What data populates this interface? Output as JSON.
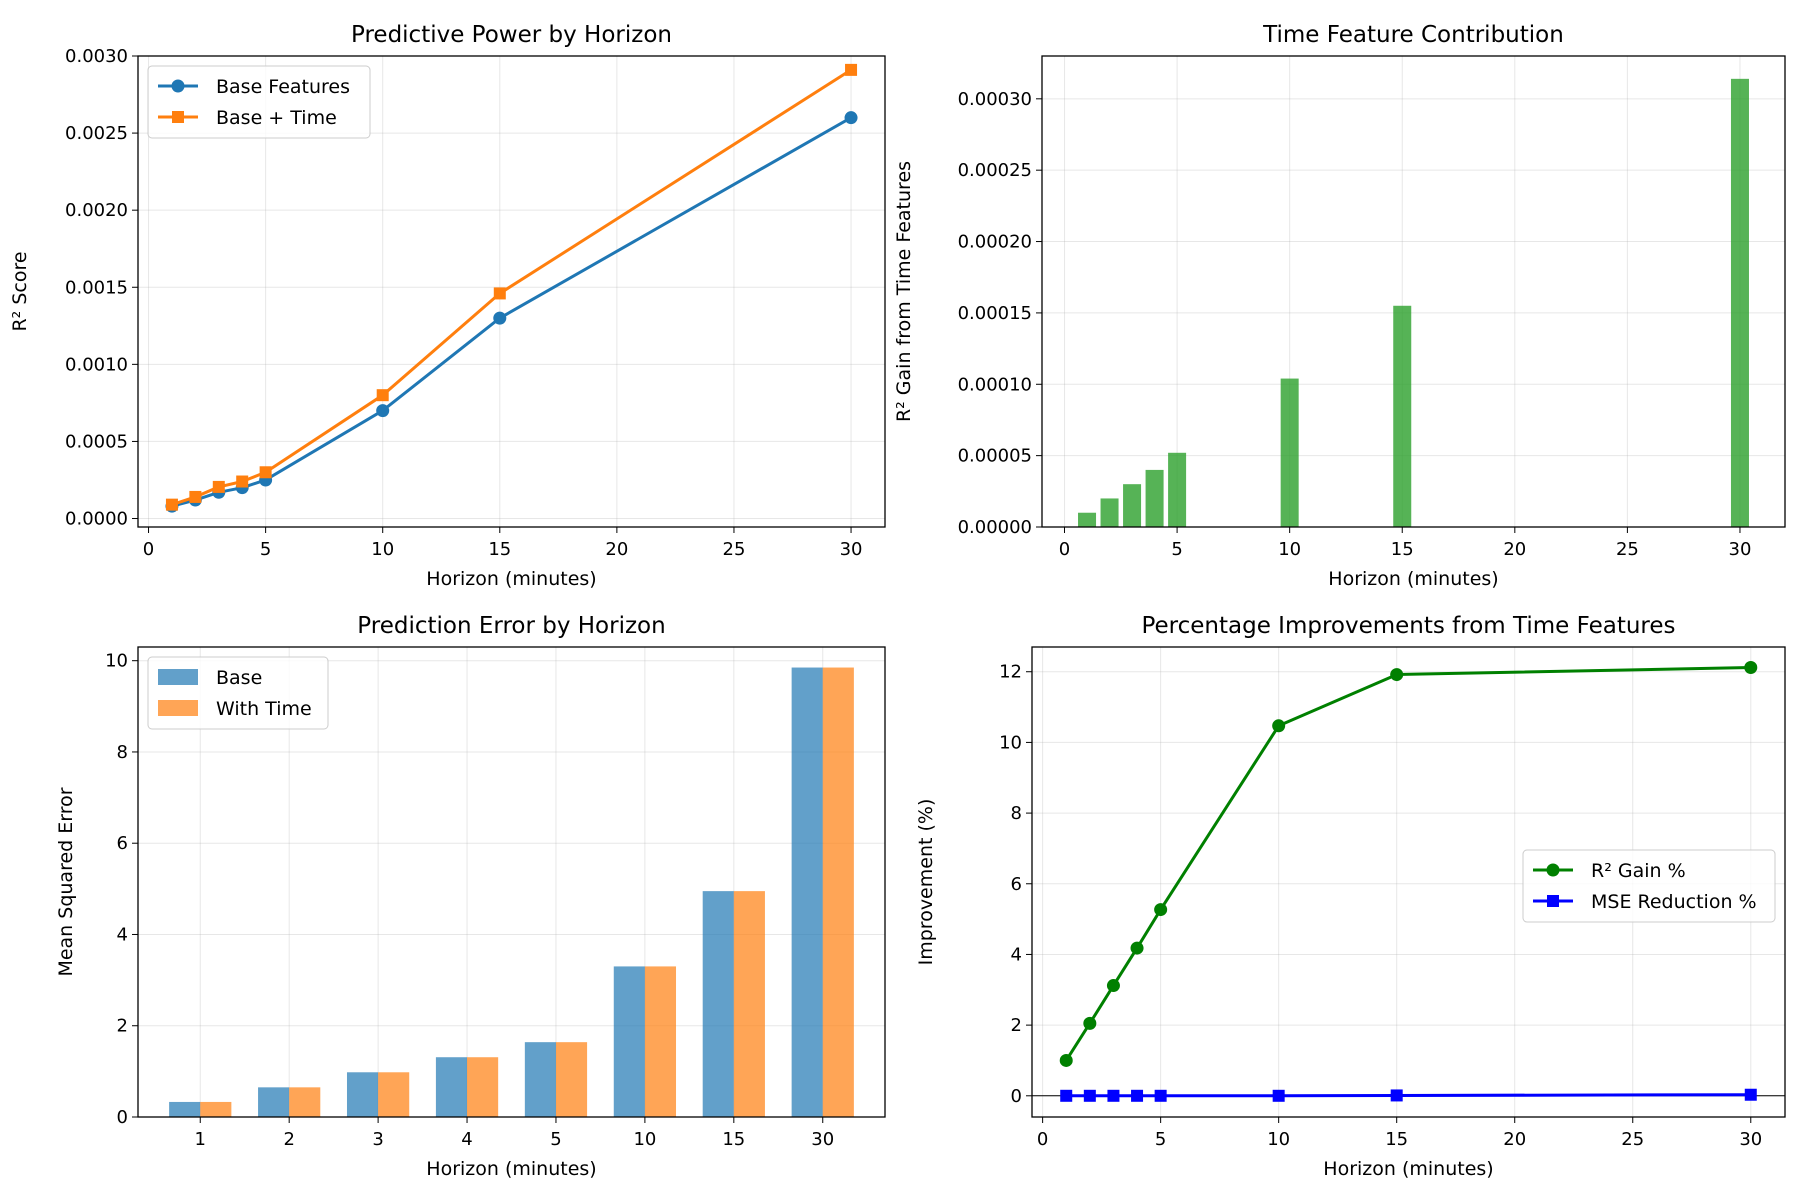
{
  "chart_data": [
    {
      "type": "line",
      "title": "Predictive Power by Horizon",
      "xlabel": "Horizon (minutes)",
      "ylabel": "R² Score",
      "xlim": [
        -0.45,
        31.45
      ],
      "ylim": [
        -5.5e-05,
        0.003
      ],
      "xticks": [
        0,
        5,
        10,
        15,
        20,
        25,
        30
      ],
      "yticks": [
        0.0,
        0.0005,
        0.001,
        0.0015,
        0.002,
        0.0025,
        0.003
      ],
      "ytick_labels": [
        "0.0000",
        "0.0005",
        "0.0010",
        "0.0015",
        "0.0020",
        "0.0025",
        "0.0030"
      ],
      "grid": true,
      "legend": "upper-left",
      "x": [
        1,
        2,
        3,
        4,
        5,
        10,
        15,
        30
      ],
      "series": [
        {
          "name": "Base Features",
          "color": "#1f77b4",
          "marker": "circle",
          "values": [
            8e-05,
            0.00012,
            0.00017,
            0.0002,
            0.00025,
            0.0007,
            0.0013,
            0.0026
          ]
        },
        {
          "name": "Base + Time",
          "color": "#ff7f0e",
          "marker": "square",
          "values": [
            9e-05,
            0.00014,
            0.000205,
            0.00024,
            0.0003,
            0.0008,
            0.00146,
            0.00291
          ]
        }
      ]
    },
    {
      "type": "bar",
      "title": "Time Feature Contribution",
      "xlabel": "Horizon (minutes)",
      "ylabel": "R² Gain from Time Features",
      "xlim": [
        -1.0,
        32.0
      ],
      "ylim": [
        0,
        0.00033
      ],
      "xticks": [
        0,
        5,
        10,
        15,
        20,
        25,
        30
      ],
      "yticks": [
        0.0,
        5e-05,
        0.0001,
        0.00015,
        0.0002,
        0.00025,
        0.0003
      ],
      "ytick_labels": [
        "0.00000",
        "0.00005",
        "0.00010",
        "0.00015",
        "0.00020",
        "0.00025",
        "0.00030"
      ],
      "grid": true,
      "x": [
        1,
        2,
        3,
        4,
        5,
        10,
        15,
        30
      ],
      "bar_color": "#2ca02c",
      "values": [
        1e-05,
        2e-05,
        3e-05,
        4e-05,
        5.2e-05,
        0.000104,
        0.000155,
        0.000314
      ]
    },
    {
      "type": "bar",
      "title": "Prediction Error by Horizon",
      "xlabel": "Horizon (minutes)",
      "ylabel": "Mean Squared Error",
      "categories": [
        "1",
        "2",
        "3",
        "4",
        "5",
        "10",
        "15",
        "30"
      ],
      "ylim": [
        0,
        10.3
      ],
      "yticks": [
        0,
        2,
        4,
        6,
        8,
        10
      ],
      "ytick_labels": [
        "0",
        "2",
        "4",
        "6",
        "8",
        "10"
      ],
      "grid": true,
      "legend": "upper-left",
      "series": [
        {
          "name": "Base",
          "color": "#1f77b4",
          "values": [
            0.33,
            0.65,
            0.98,
            1.31,
            1.64,
            3.3,
            4.95,
            9.85
          ]
        },
        {
          "name": "With Time",
          "color": "#ff7f0e",
          "values": [
            0.33,
            0.65,
            0.98,
            1.31,
            1.64,
            3.3,
            4.95,
            9.85
          ]
        }
      ]
    },
    {
      "type": "line",
      "title": "Percentage Improvements from Time Features",
      "xlabel": "Horizon (minutes)",
      "ylabel": "Improvement (%)",
      "xlim": [
        -0.45,
        31.45
      ],
      "ylim": [
        -0.6,
        12.7
      ],
      "xticks": [
        0,
        5,
        10,
        15,
        20,
        25,
        30
      ],
      "yticks": [
        0,
        2,
        4,
        6,
        8,
        10,
        12
      ],
      "ytick_labels": [
        "0",
        "2",
        "4",
        "6",
        "8",
        "10",
        "12"
      ],
      "grid": true,
      "legend": "center-right",
      "zero_line": true,
      "x": [
        1,
        2,
        3,
        4,
        5,
        10,
        15,
        30
      ],
      "series": [
        {
          "name": "R² Gain %",
          "color": "#008000",
          "marker": "circle",
          "values": [
            1.0,
            2.05,
            3.12,
            4.18,
            5.27,
            10.47,
            11.92,
            12.12
          ]
        },
        {
          "name": "MSE Reduction %",
          "color": "#0000ff",
          "marker": "square",
          "values": [
            0.0,
            0.0,
            0.0,
            0.0,
            0.0,
            0.0,
            0.01,
            0.03
          ]
        }
      ]
    }
  ]
}
